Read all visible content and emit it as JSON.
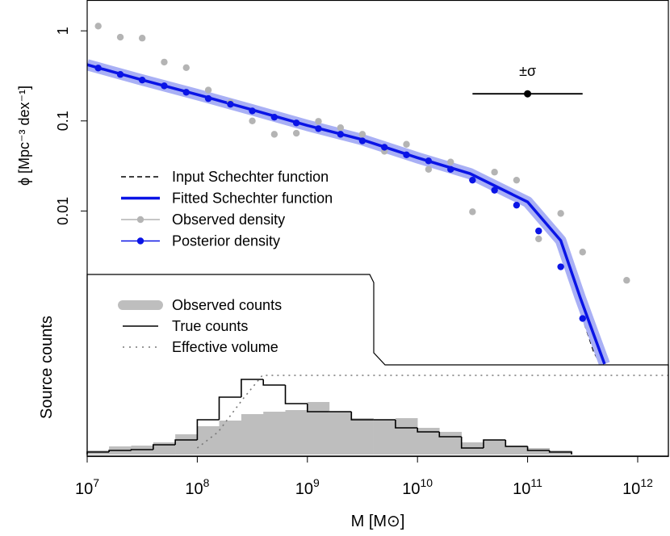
{
  "chart_data": [
    {
      "type": "line",
      "ylabel": "ϕ [Mpc⁻³ dex⁻¹]",
      "ylog": true,
      "xlog": true,
      "xlim": [
        10000000.0,
        1900000000000.0
      ],
      "ylim": [
        1.9e-05,
        2.2
      ],
      "yticks": [
        1,
        0.1,
        0.01
      ],
      "legend": "left",
      "series": [
        {
          "name": "Input Schechter function",
          "style": "dashed",
          "color": "#000000",
          "x": [
            10000000.0,
            30000000.0,
            100000000.0,
            300000000.0,
            1000000000.0,
            3000000000.0,
            10000000000.0,
            30000000000.0,
            100000000000.0,
            200000000000.0,
            300000000000.0,
            400000000000.0,
            460000000000.0
          ],
          "values": [
            0.4,
            0.28,
            0.19,
            0.13,
            0.087,
            0.061,
            0.038,
            0.025,
            0.0118,
            0.0042,
            0.00078,
            0.00027,
            0.0002
          ]
        },
        {
          "name": "Fitted Schechter function",
          "style": "line",
          "color": "#0a14e6",
          "x": [
            10000000.0,
            30000000.0,
            100000000.0,
            300000000.0,
            1000000000.0,
            3000000000.0,
            10000000000.0,
            30000000000.0,
            100000000000.0,
            200000000000.0,
            300000000000.0,
            400000000000.0,
            500000000000.0
          ],
          "values": [
            0.42,
            0.29,
            0.196,
            0.135,
            0.089,
            0.063,
            0.039,
            0.026,
            0.0126,
            0.0047,
            0.0011,
            0.00042,
            0.0002
          ]
        },
        {
          "name": "Observed density",
          "style": "points",
          "color": "#b4b4b4",
          "x": [
            12600000.0,
            20000000.0,
            31600000.0,
            50100000.0,
            79400000.0,
            126000000.0,
            200000000.0,
            316000000.0,
            501000000.0,
            794000000.0,
            1260000000.0,
            2000000000.0,
            3160000000.0,
            5010000000.0,
            7940000000.0,
            12600000000.0,
            20000000000.0,
            31600000000.0,
            50100000000.0,
            79400000000.0,
            126000000000.0,
            200000000000.0,
            316000000000.0,
            794000000000.0
          ],
          "values": [
            1.13,
            0.85,
            0.83,
            0.45,
            0.39,
            0.22,
            0.16,
            0.1,
            0.071,
            0.073,
            0.099,
            0.084,
            0.071,
            0.046,
            0.055,
            0.029,
            0.035,
            0.0098,
            0.027,
            0.022,
            0.0049,
            0.0094,
            0.0035,
            0.0017
          ]
        },
        {
          "name": "Posterior density",
          "style": "points",
          "color": "#0a14e6",
          "x": [
            12600000.0,
            20000000.0,
            31600000.0,
            50100000.0,
            79400000.0,
            126000000.0,
            200000000.0,
            316000000.0,
            501000000.0,
            794000000.0,
            1260000000.0,
            2000000000.0,
            3160000000.0,
            5010000000.0,
            7940000000.0,
            12600000000.0,
            20000000000.0,
            31600000000.0,
            50100000000.0,
            79400000000.0,
            126000000000.0,
            200000000000.0,
            316000000000.0
          ],
          "values": [
            0.386,
            0.328,
            0.284,
            0.245,
            0.208,
            0.177,
            0.153,
            0.129,
            0.11,
            0.095,
            0.082,
            0.071,
            0.06,
            0.051,
            0.042,
            0.036,
            0.029,
            0.022,
            0.017,
            0.0116,
            0.006,
            0.0024,
            0.00064
          ]
        }
      ],
      "annotation": {
        "text": "±σ",
        "x": 100000000000.0,
        "y": 0.2,
        "xmin": 31600000000.0,
        "xmax": 316000000000.0
      }
    },
    {
      "type": "histogram",
      "xlabel": "M [M⊙]",
      "ylabel": "Source counts",
      "xlog": true,
      "legend": "left",
      "xlim": [
        10000000.0,
        1900000000000.0
      ],
      "ylim": [
        0,
        110
      ],
      "xticks": [
        {
          "value": 10000000.0,
          "label": "10",
          "power": "7"
        },
        {
          "value": 100000000.0,
          "label": "10",
          "power": "8"
        },
        {
          "value": 1000000000.0,
          "label": "10",
          "power": "9"
        },
        {
          "value": 10000000000.0,
          "label": "10",
          "power": "10"
        },
        {
          "value": 100000000000.0,
          "label": "10",
          "power": "11"
        },
        {
          "value": 1000000000000.0,
          "label": "10",
          "power": "12"
        }
      ],
      "bins": [
        10000000.0,
        15800000.0,
        25100000.0,
        39800000.0,
        63100000.0,
        100000000.0,
        158000000.0,
        251000000.0,
        398000000.0,
        631000000.0,
        1000000000.0,
        1580000000.0,
        2510000000.0,
        3980000000.0,
        6310000000.0,
        10000000000.0,
        15800000000.0,
        25100000000.0,
        39800000000.0,
        63100000000.0,
        100000000000.0,
        158000000000.0,
        251000000000.0
      ],
      "series": [
        {
          "name": "Observed counts",
          "style": "filled",
          "color": "#bebebe",
          "values": [
            5,
            10,
            11,
            15,
            25,
            35,
            42,
            50,
            53,
            55,
            65,
            53,
            45,
            43,
            45,
            33,
            28,
            15,
            18,
            11,
            8,
            5
          ]
        },
        {
          "name": "True counts",
          "style": "step",
          "color": "#000000",
          "values": [
            3,
            5,
            6,
            12,
            18,
            43,
            71,
            93,
            86,
            63,
            53,
            53,
            43,
            43,
            33,
            28,
            22,
            8,
            18,
            10,
            5,
            3
          ]
        },
        {
          "name": "Effective volume",
          "style": "dotted",
          "color": "#777777",
          "x": [
            100000000.0,
            155000000.0,
            257000000.0,
            390000000.0,
            1900000000000.0
          ],
          "values": [
            8,
            28,
            68,
            98,
            98
          ]
        }
      ]
    }
  ]
}
